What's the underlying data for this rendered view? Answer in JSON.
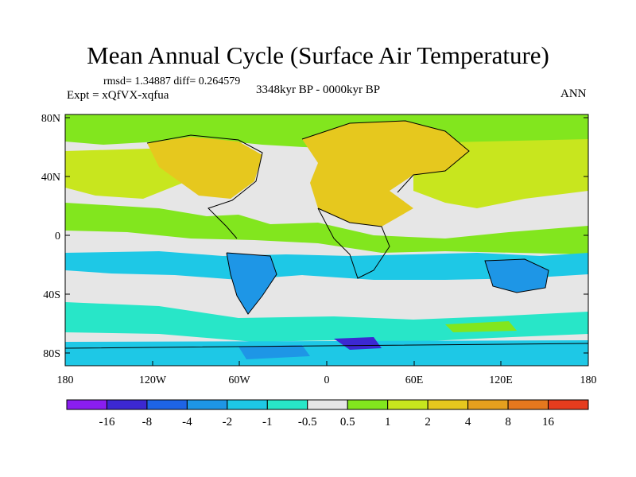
{
  "title": "Mean Annual Cycle (Surface Air Temperature)",
  "stats": "rmsd= 1.34887 diff= 0.264579",
  "experiment": "Expt = xQfVX-xqfua",
  "period": "3348kyr BP - 0000kyr BP",
  "season": "ANN",
  "lat_labels": [
    "80N",
    "40N",
    "0",
    "40S",
    "80S"
  ],
  "lon_labels": [
    "180",
    "120W",
    "60W",
    "0",
    "60E",
    "120E",
    "180"
  ],
  "colorbar": {
    "colors": [
      "#8a1ef0",
      "#3c28d2",
      "#1e64e6",
      "#1e96e6",
      "#1ec8e6",
      "#28e6c8",
      "#e6e6e6",
      "#82e61e",
      "#c8e61e",
      "#e6c81e",
      "#e6a01e",
      "#e6781e",
      "#e63c1e"
    ],
    "labels": [
      "-16",
      "-8",
      "-4",
      "-2",
      "-1",
      "-0.5",
      "0.5",
      "1",
      "2",
      "4",
      "8",
      "16"
    ]
  }
}
